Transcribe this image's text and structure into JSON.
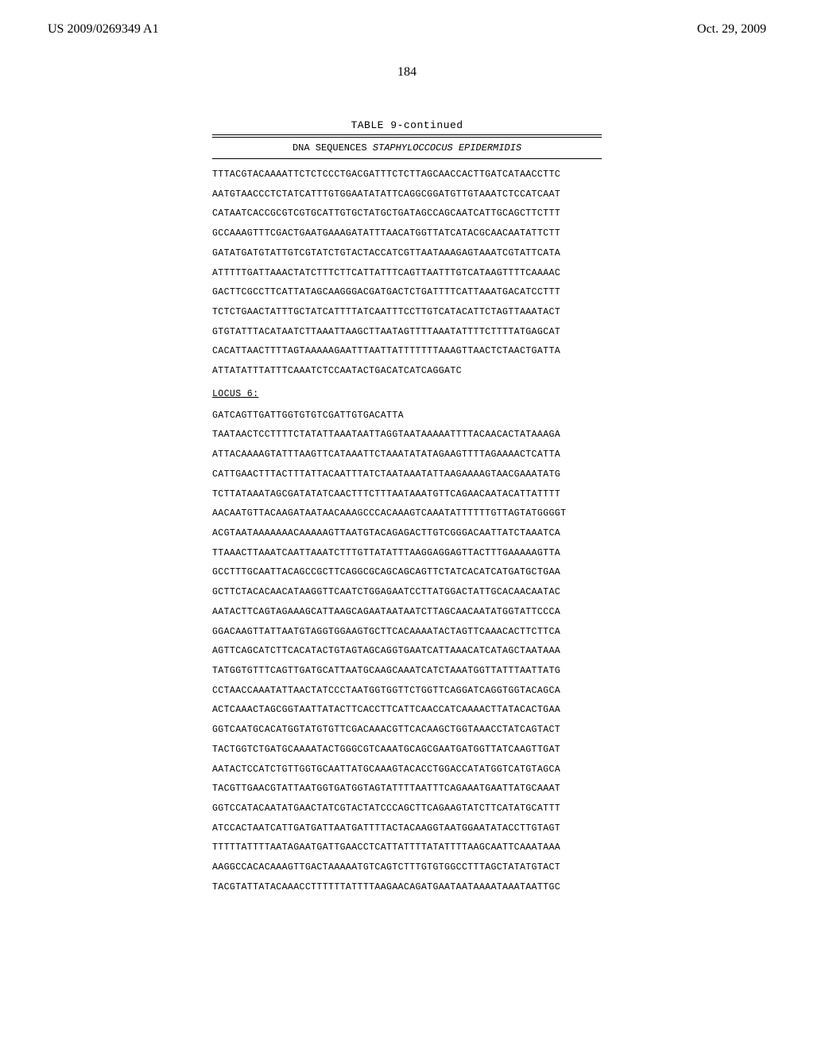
{
  "header": {
    "pub_number": "US 2009/0269349 A1",
    "pub_date": "Oct. 29, 2009"
  },
  "page_number": "184",
  "table": {
    "title": "TABLE 9-continued",
    "subtitle_prefix": "DNA SEQUENCES ",
    "subtitle_italic": "STAPHYLOCCOCUS EPIDERMIDIS",
    "sequences_pre_locus": [
      "TTTACGTACAAAATTCTCTCCCTGACGATTTCTCTTAGCAACCACTTGATCATAACCTTC",
      "AATGTAACCCTCTATCATTTGTGGAATATATTCAGGCGGATGTTGTAAATCTCCATCAAT",
      "CATAATCACCGCGTCGTGCATTGTGCTATGCTGATAGCCAGCAATCATTGCAGCTTCTTT",
      "GCCAAAGTTTCGACTGAATGAAAGATATTTAACATGGTTATCATACGCAACAATATTCTT",
      "GATATGATGTATTGTCGTATCTGTACTACCATCGTTAATAAAGAGTAAATCGTATTCATA",
      "ATTTTTGATTAAACTATCTTTCTTCATTATTTCAGTTAATTTGTCATAAGTTTTCAAAAC",
      "GACTTCGCCTTCATTATAGCAAGGGACGATGACTCTGATTTTCATTAAATGACATCCTTT",
      "TCTCTGAACTATTTGCTATCATTTTATCAATTTCCTTGTCATACATTCTAGTTAAATACT",
      "GTGTATTTACATAATCTTAAATTAAGCTTAATAGTTTTAAATATTTTCTTTTATGAGCAT",
      "CACATTAACTTTTAGTAAAAAGAATTTAATTATTTTTTTAAAGTTAACTCTAACTGATTA",
      "ATTATATTTATTTCAAATCTCCAATACTGACATCATCAGGATC"
    ],
    "locus_label": "LOCUS 6:",
    "sequences_post_locus": [
      "GATCAGTTGATTGGTGTGTCGATTGTGACATTA",
      "TAATAACTCCTTTTCTATATTAAATAATTAGGTAATAAAAATTTTACAACACTATAAAGA",
      "ATTACAAAAGTATTTAAGTTCATAAATTCTAAATATATAGAAGTTTTAGAAAACTCATTA",
      "CATTGAACTTTACTTTATTACAATTTATCTAATAAATATTAAGAAAAGTAACGAAATATG",
      "TCTTATAAATAGCGATATATCAACTTTCTTTAATAAATGTTCAGAACAATACATTATTTT",
      "AACAATGTTACAAGATAATAACAAAGCCCACAAAGTCAAATATTTTTTGTTAGTATGGGGT",
      "ACGTAATAAAAAAACAAAAAGTTAATGTACAGAGACTTGTCGGGACAATTATCTAAATCA",
      "TTAAACTTAAATCAATTAAATCTTTGTTATATTTAAGGAGGAGTTACTTTGAAAAAGTTA",
      "GCCTTTGCAATTACAGCCGCTTCAGGCGCAGCAGCAGTTCTATCACATCATGATGCTGAA",
      "GCTTCTACACAACATAAGGTTCAATCTGGAGAATCCTTATGGACTATTGCACAACAATAC",
      "AATACTTCAGTAGAAAGCATTAAGCAGAATAATAATCTTAGCAACAATATGGTATTCCCA",
      "GGACAAGTTATTAATGTAGGTGGAAGTGCTTCACAAAATACTAGTTCAAACACTTCTTCA",
      "AGTTCAGCATCTTCACATACTGTAGTAGCAGGTGAATCATTAAACATCATAGCTAATAAA",
      "TATGGTGTTTCAGTTGATGCATTAATGCAAGCAAATCATCTAAATGGTTATTTAATTATG",
      "CCTAACCAAATATTAACTATCCCTAATGGTGGTTCTGGTTCAGGATCAGGTGGTACAGCA",
      "ACTCAAACTAGCGGTAATTATACTTCACCTTCATTCAACCATCAAAACTTATACACTGAA",
      "GGTCAATGCACATGGTATGTGTTCGACAAACGTTCACAAGCTGGTAAACCTATCAGTACT",
      "TACTGGTCTGATGCAAAATACTGGGCGTCAAATGCAGCGAATGATGGTTATCAAGTTGAT",
      "AATACTCCATCTGTTGGTGCAATTATGCAAAGTACACCTGGACCATATGGTCATGTAGCA",
      "TACGTTGAACGTATTAATGGTGATGGTAGTATTTTAATTTCAGAAATGAATTATGCAAAT",
      "GGTCCATACAATATGAACTATCGTACTATCCCAGCTTCAGAAGTATCTTCATATGCATTT",
      "ATCCACTAATCATTGATGATTAATGATTTTACTACAAGGTAATGGAATATACCTTGTAGT",
      "TTTTTATTTTAATAGAATGATTGAACCTCATTATTTTATATTTTAAGCAATTCAAATAAA",
      "AAGGCCACACAAAGTTGACTAAAAATGTCAGTCTTTGTGTGGCCTTTAGCTATATGTACT",
      "TACGTATTATACAAACCTTTTTTATTTTAAGAACAGATGAATAATAAAATAAATAATTGC"
    ]
  }
}
